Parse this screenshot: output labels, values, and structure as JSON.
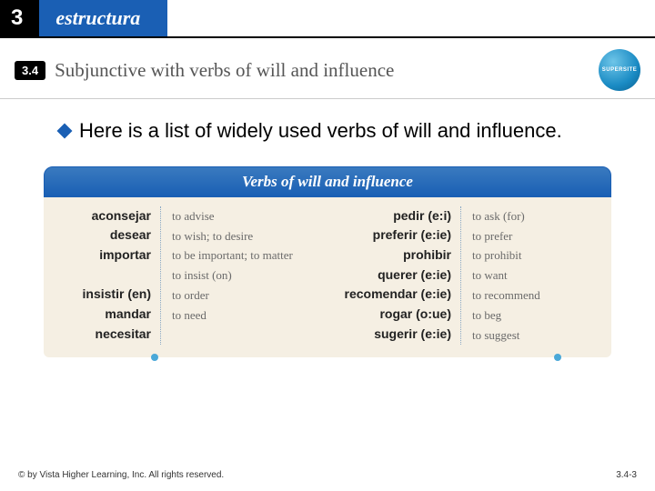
{
  "header": {
    "chapter": "3",
    "label": "estructura"
  },
  "section": {
    "number": "3.4",
    "title": "Subjunctive with verbs of will and influence",
    "badge": "SUPERSITE"
  },
  "intro": "Here is a list of widely used verbs of will and influence.",
  "table": {
    "title": "Verbs of will and influence",
    "left": [
      {
        "v": "aconsejar",
        "d": "to advise"
      },
      {
        "v": "desear",
        "d": "to wish; to desire"
      },
      {
        "v": "importar",
        "d": "to be important; to matter"
      },
      {
        "v": "insistir (en)",
        "d": "to insist (on)"
      },
      {
        "v": "mandar",
        "d": "to order"
      },
      {
        "v": "necesitar",
        "d": "to need"
      }
    ],
    "right": [
      {
        "v": "pedir (e:i)",
        "d": "to ask (for)"
      },
      {
        "v": "preferir (e:ie)",
        "d": "to prefer"
      },
      {
        "v": "prohibir",
        "d": "to prohibit"
      },
      {
        "v": "querer (e:ie)",
        "d": "to want"
      },
      {
        "v": "recomendar (e:ie)",
        "d": "to recommend"
      },
      {
        "v": "rogar (o:ue)",
        "d": "to beg"
      },
      {
        "v": "sugerir (e:ie)",
        "d": "to suggest"
      }
    ]
  },
  "footer": {
    "copyright": "© by Vista Higher Learning, Inc. All rights reserved.",
    "page": "3.4-3"
  }
}
